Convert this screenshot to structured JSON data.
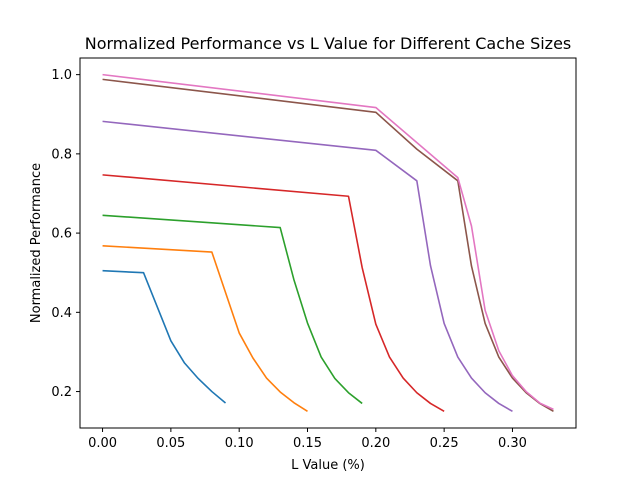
{
  "chart_data": {
    "type": "line",
    "title": "Normalized Performance vs L Value for Different Cache Sizes",
    "xlabel": "L Value (%)",
    "ylabel": "Normalized Performance",
    "xlim": [
      -0.0165,
      0.3465
    ],
    "ylim": [
      0.108,
      1.042
    ],
    "xticks": [
      0.0,
      0.05,
      0.1,
      0.15,
      0.2,
      0.25,
      0.3
    ],
    "xtick_labels": [
      "0.00",
      "0.05",
      "0.10",
      "0.15",
      "0.20",
      "0.25",
      "0.30"
    ],
    "yticks": [
      0.2,
      0.4,
      0.6,
      0.8,
      1.0
    ],
    "ytick_labels": [
      "0.2",
      "0.4",
      "0.6",
      "0.8",
      "1.0"
    ],
    "grid": false,
    "legend": false,
    "series": [
      {
        "color": "#1f77b4",
        "x": [
          0,
          0.03,
          0.05,
          0.06,
          0.07,
          0.08,
          0.09
        ],
        "y": [
          0.505,
          0.5,
          0.328,
          0.272,
          0.233,
          0.2,
          0.171
        ]
      },
      {
        "color": "#ff7f0e",
        "x": [
          0,
          0.08,
          0.1,
          0.11,
          0.12,
          0.13,
          0.14,
          0.15
        ],
        "y": [
          0.568,
          0.552,
          0.348,
          0.285,
          0.234,
          0.199,
          0.172,
          0.15
        ]
      },
      {
        "color": "#2ca02c",
        "x": [
          0,
          0.13,
          0.14,
          0.15,
          0.16,
          0.17,
          0.18,
          0.19
        ],
        "y": [
          0.645,
          0.614,
          0.483,
          0.373,
          0.287,
          0.233,
          0.197,
          0.17
        ]
      },
      {
        "color": "#d62728",
        "x": [
          0,
          0.18,
          0.19,
          0.2,
          0.21,
          0.22,
          0.23,
          0.24,
          0.25
        ],
        "y": [
          0.747,
          0.693,
          0.513,
          0.37,
          0.287,
          0.234,
          0.197,
          0.17,
          0.15
        ]
      },
      {
        "color": "#9467bd",
        "x": [
          0,
          0.2,
          0.23,
          0.24,
          0.25,
          0.26,
          0.27,
          0.28,
          0.29,
          0.3
        ],
        "y": [
          0.882,
          0.809,
          0.732,
          0.518,
          0.372,
          0.287,
          0.234,
          0.197,
          0.17,
          0.15
        ]
      },
      {
        "color": "#8c564b",
        "x": [
          0,
          0.2,
          0.23,
          0.26,
          0.27,
          0.28,
          0.29,
          0.3,
          0.31,
          0.32,
          0.33
        ],
        "y": [
          0.988,
          0.905,
          0.812,
          0.732,
          0.517,
          0.372,
          0.287,
          0.234,
          0.197,
          0.17,
          0.15
        ]
      },
      {
        "color": "#e377c2",
        "x": [
          0,
          0.2,
          0.26,
          0.27,
          0.28,
          0.29,
          0.3,
          0.31,
          0.32,
          0.33
        ],
        "y": [
          1.0,
          0.917,
          0.74,
          0.618,
          0.405,
          0.303,
          0.24,
          0.2,
          0.171,
          0.155
        ]
      }
    ]
  }
}
